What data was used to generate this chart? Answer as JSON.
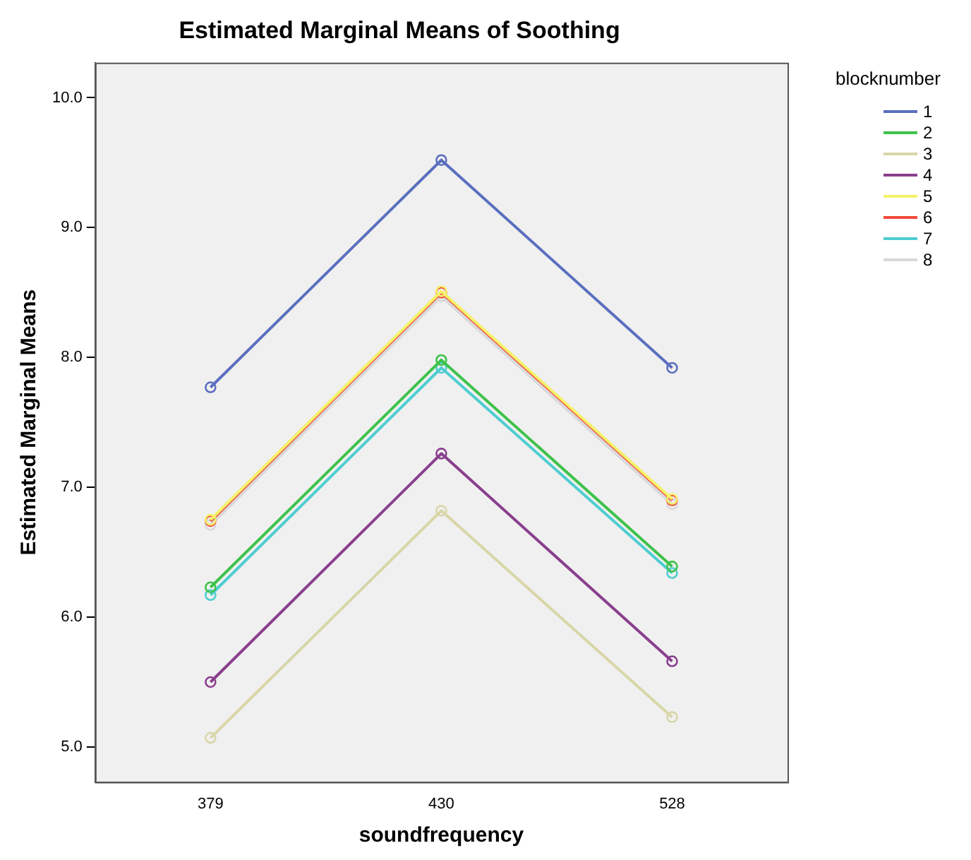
{
  "chart_data": {
    "type": "line",
    "title": "Estimated Marginal Means of Soothing",
    "xlabel": "soundfrequency",
    "ylabel": "Estimated Marginal Means",
    "legend_title": "blocknumber",
    "categories": [
      "379",
      "430",
      "528"
    ],
    "ylim": [
      4.73,
      10.27
    ],
    "yticks": [
      {
        "value": 5,
        "label": "5.0"
      },
      {
        "value": 6,
        "label": "6.0"
      },
      {
        "value": 7,
        "label": "7.0"
      },
      {
        "value": 8,
        "label": "8.0"
      },
      {
        "value": 9,
        "label": "9.0"
      },
      {
        "value": 10,
        "label": "10.0"
      }
    ],
    "grid": false,
    "legend": "top right",
    "marker": "circle",
    "line_style": "solid",
    "series": [
      {
        "name": "1",
        "color": "#5b6fbf",
        "values": [
          7.77,
          9.52,
          7.92
        ]
      },
      {
        "name": "2",
        "color": "#3ec24a",
        "values": [
          6.23,
          7.98,
          6.39
        ]
      },
      {
        "name": "3",
        "color": "#d8d6a8",
        "values": [
          5.07,
          6.82,
          5.23
        ]
      },
      {
        "name": "4",
        "color": "#8a3f8e",
        "values": [
          5.5,
          7.26,
          5.66
        ]
      },
      {
        "name": "5",
        "color": "#f5f26a",
        "values": [
          6.75,
          8.51,
          6.91
        ]
      },
      {
        "name": "6",
        "color": "#f24a3c",
        "values": [
          6.74,
          8.5,
          6.9
        ]
      },
      {
        "name": "7",
        "color": "#4fcdd0",
        "values": [
          6.17,
          7.92,
          6.34
        ]
      },
      {
        "name": "8",
        "color": "#d9d9d9",
        "values": [
          6.71,
          8.47,
          6.87
        ]
      }
    ]
  }
}
